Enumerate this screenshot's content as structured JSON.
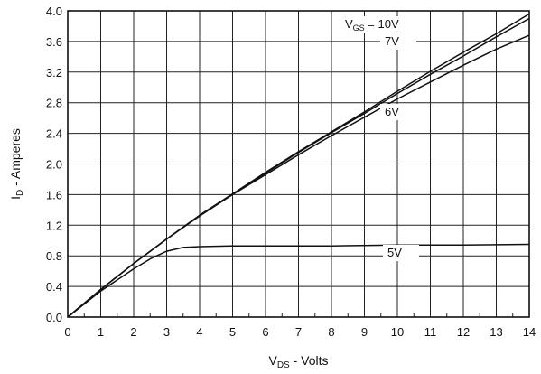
{
  "chart_data": {
    "type": "line",
    "xlabel": {
      "main": "V",
      "sub": "DS",
      "rest": " - Volts"
    },
    "ylabel": {
      "main": "I",
      "sub": "D",
      "rest": " - Amperes"
    },
    "xlim": [
      0,
      14
    ],
    "ylim": [
      0,
      4.0
    ],
    "xticks": [
      "0",
      "1",
      "2",
      "3",
      "4",
      "5",
      "6",
      "7",
      "8",
      "9",
      "10",
      "11",
      "12",
      "13",
      "14"
    ],
    "yticks": [
      "0.0",
      "0.4",
      "0.8",
      "1.2",
      "1.6",
      "2.0",
      "2.4",
      "2.8",
      "3.2",
      "3.6",
      "4.0"
    ],
    "grid": true,
    "series": [
      {
        "name": "V_GS = 10V",
        "label": {
          "main": "V",
          "sub": "GS",
          "rest": " = 10V"
        },
        "x": [
          0,
          1,
          2,
          3,
          4,
          5,
          6,
          7,
          8,
          9,
          10,
          11,
          12,
          13,
          14
        ],
        "y": [
          0,
          0.36,
          0.7,
          1.02,
          1.33,
          1.61,
          1.89,
          2.16,
          2.42,
          2.68,
          2.95,
          3.21,
          3.46,
          3.7,
          3.96
        ]
      },
      {
        "name": "7V",
        "label": {
          "main": "",
          "sub": "",
          "rest": "7V"
        },
        "x": [
          0,
          1,
          2,
          3,
          4,
          5,
          6,
          7,
          8,
          9,
          10,
          11,
          12,
          13,
          14
        ],
        "y": [
          0,
          0.36,
          0.7,
          1.02,
          1.33,
          1.61,
          1.88,
          2.15,
          2.41,
          2.66,
          2.92,
          3.17,
          3.41,
          3.66,
          3.9
        ]
      },
      {
        "name": "6V",
        "label": {
          "main": "",
          "sub": "",
          "rest": "6V"
        },
        "x": [
          0,
          1,
          2,
          3,
          4,
          5,
          6,
          7,
          8,
          9,
          10,
          11,
          12,
          13,
          14
        ],
        "y": [
          0,
          0.36,
          0.7,
          1.02,
          1.32,
          1.6,
          1.86,
          2.12,
          2.37,
          2.61,
          2.85,
          3.07,
          3.29,
          3.5,
          3.68
        ]
      },
      {
        "name": "5V",
        "label": {
          "main": "",
          "sub": "",
          "rest": "5V"
        },
        "x": [
          0,
          1,
          2,
          2.5,
          3,
          3.5,
          4,
          5,
          6,
          8,
          10,
          12,
          14
        ],
        "y": [
          0,
          0.34,
          0.63,
          0.76,
          0.86,
          0.91,
          0.92,
          0.93,
          0.93,
          0.93,
          0.94,
          0.94,
          0.95
        ]
      }
    ]
  }
}
